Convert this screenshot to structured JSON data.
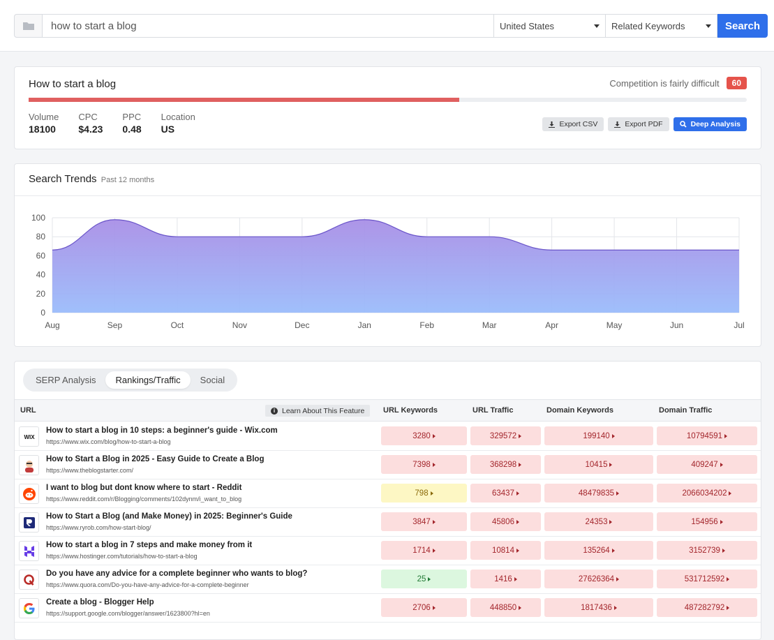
{
  "search": {
    "query": "how to start a blog",
    "country": "United States",
    "mode": "Related Keywords",
    "button": "Search"
  },
  "keyword": {
    "title": "How to start a blog",
    "competition_label": "Competition is fairly difficult",
    "competition_score": "60",
    "difficulty_fraction": 0.6,
    "metrics": [
      {
        "label": "Volume",
        "value": "18100"
      },
      {
        "label": "CPC",
        "value": "$4.23"
      },
      {
        "label": "PPC",
        "value": "0.48"
      },
      {
        "label": "Location",
        "value": "US"
      }
    ],
    "actions": {
      "csv": "Export CSV",
      "pdf": "Export PDF",
      "deep": "Deep Analysis"
    }
  },
  "trends": {
    "title": "Search Trends",
    "subtitle": "Past 12 months"
  },
  "chart_data": {
    "type": "area",
    "title": "Search Trends",
    "categories": [
      "Aug",
      "Sep",
      "Oct",
      "Nov",
      "Dec",
      "Jan",
      "Feb",
      "Mar",
      "Apr",
      "May",
      "Jun",
      "Jul"
    ],
    "values": [
      66,
      98,
      80,
      80,
      80,
      98,
      80,
      80,
      66,
      66,
      66,
      66
    ],
    "ylim": [
      0,
      100
    ],
    "yticks": [
      0,
      20,
      40,
      60,
      80,
      100
    ],
    "grid": true,
    "colors": {
      "line": "#6a55c9",
      "top": "#a98fe6",
      "bottom": "#9bbcfb"
    }
  },
  "table": {
    "tabs": [
      "SERP Analysis",
      "Rankings/Traffic",
      "Social"
    ],
    "active_tab": 1,
    "headers": {
      "url": "URL",
      "learn": "Learn About This Feature",
      "url_keywords": "URL Keywords",
      "url_traffic": "URL Traffic",
      "domain_keywords": "Domain Keywords",
      "domain_traffic": "Domain Traffic"
    },
    "rows": [
      {
        "icon": "wix-icon",
        "title": "How to start a blog in 10 steps: a beginner's guide - Wix.com",
        "url": "https://www.wix.com/blog/how-to-start-a-blog",
        "url_keywords": "3280",
        "url_keywords_color": "red",
        "url_traffic": "329572",
        "domain_keywords": "199140",
        "domain_traffic": "10794591"
      },
      {
        "icon": "blogstarter-icon",
        "title": "How to Start a Blog in 2025 - Easy Guide to Create a Blog",
        "url": "https://www.theblogstarter.com/",
        "url_keywords": "7398",
        "url_keywords_color": "red",
        "url_traffic": "368298",
        "domain_keywords": "10415",
        "domain_traffic": "409247"
      },
      {
        "icon": "reddit-icon",
        "title": "I want to blog but dont know where to start - Reddit",
        "url": "https://www.reddit.com/r/Blogging/comments/102dynm/i_want_to_blog",
        "url_keywords": "798",
        "url_keywords_color": "yellow",
        "url_traffic": "63437",
        "domain_keywords": "48479835",
        "domain_traffic": "2066034202"
      },
      {
        "icon": "ryrob-icon",
        "title": "How to Start a Blog (and Make Money) in 2025: Beginner's Guide",
        "url": "https://www.ryrob.com/how-start-blog/",
        "url_keywords": "3847",
        "url_keywords_color": "red",
        "url_traffic": "45806",
        "domain_keywords": "24353",
        "domain_traffic": "154956"
      },
      {
        "icon": "hostinger-icon",
        "title": "How to start a blog in 7 steps and make money from it",
        "url": "https://www.hostinger.com/tutorials/how-to-start-a-blog",
        "url_keywords": "1714",
        "url_keywords_color": "red",
        "url_traffic": "10814",
        "domain_keywords": "135264",
        "domain_traffic": "3152739"
      },
      {
        "icon": "quora-icon",
        "title": "Do you have any advice for a complete beginner who wants to blog?",
        "url": "https://www.quora.com/Do-you-have-any-advice-for-a-complete-beginner",
        "url_keywords": "25",
        "url_keywords_color": "green",
        "url_traffic": "1416",
        "domain_keywords": "27626364",
        "domain_traffic": "531712592"
      },
      {
        "icon": "google-icon",
        "title": "Create a blog - Blogger Help",
        "url": "https://support.google.com/blogger/answer/1623800?hl=en",
        "url_keywords": "2706",
        "url_keywords_color": "red",
        "url_traffic": "448850",
        "domain_keywords": "1817436",
        "domain_traffic": "487282792"
      }
    ]
  }
}
